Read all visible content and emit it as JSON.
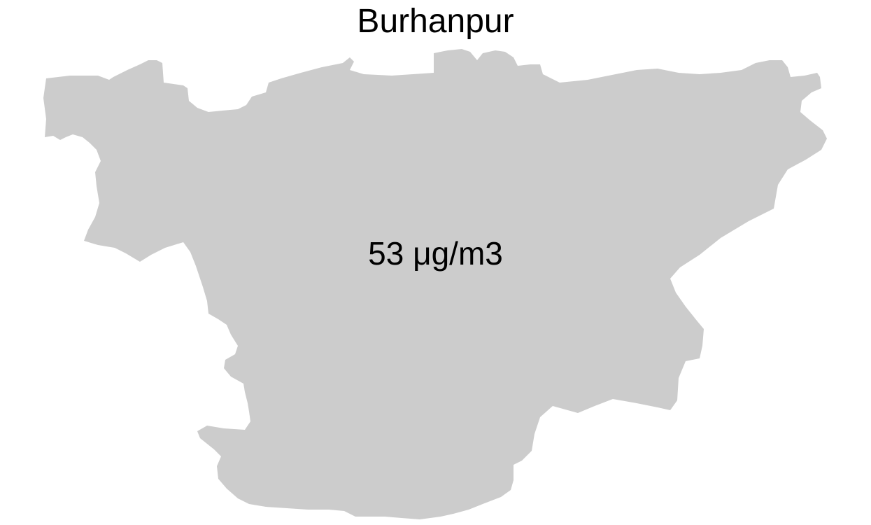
{
  "map": {
    "title": "Burhanpur",
    "value_label": "53 μg/m3",
    "region_fill": "#cccccc",
    "background": "#ffffff"
  }
}
